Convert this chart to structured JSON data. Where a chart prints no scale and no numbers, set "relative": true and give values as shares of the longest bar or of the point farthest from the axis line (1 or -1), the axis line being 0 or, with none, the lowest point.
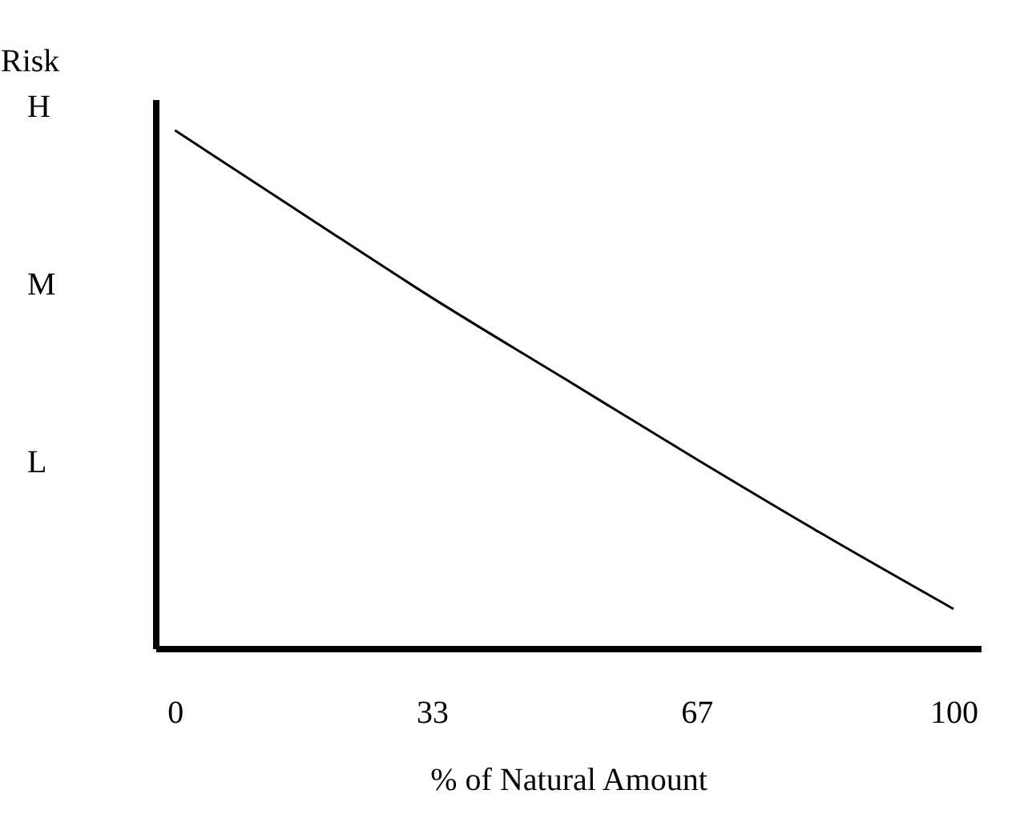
{
  "chart_data": {
    "type": "line",
    "xlabel": "% of Natural Amount",
    "ylabel": "Risk",
    "relative": true,
    "annotations": [
      "H",
      "M",
      "L"
    ],
    "x": [
      0,
      17,
      33,
      50,
      67,
      83,
      100
    ],
    "series": [
      {
        "color": "#000000",
        "values": [
          1,
          0.833,
          0.677,
          0.521,
          0.365,
          0.222,
          0.076
        ]
      }
    ],
    "xlim": [
      -2.5,
      103.5
    ],
    "xticks": [
      0,
      33,
      67,
      100
    ],
    "grid": false,
    "legend": false,
    "marker": "none",
    "line_style": "solid"
  }
}
